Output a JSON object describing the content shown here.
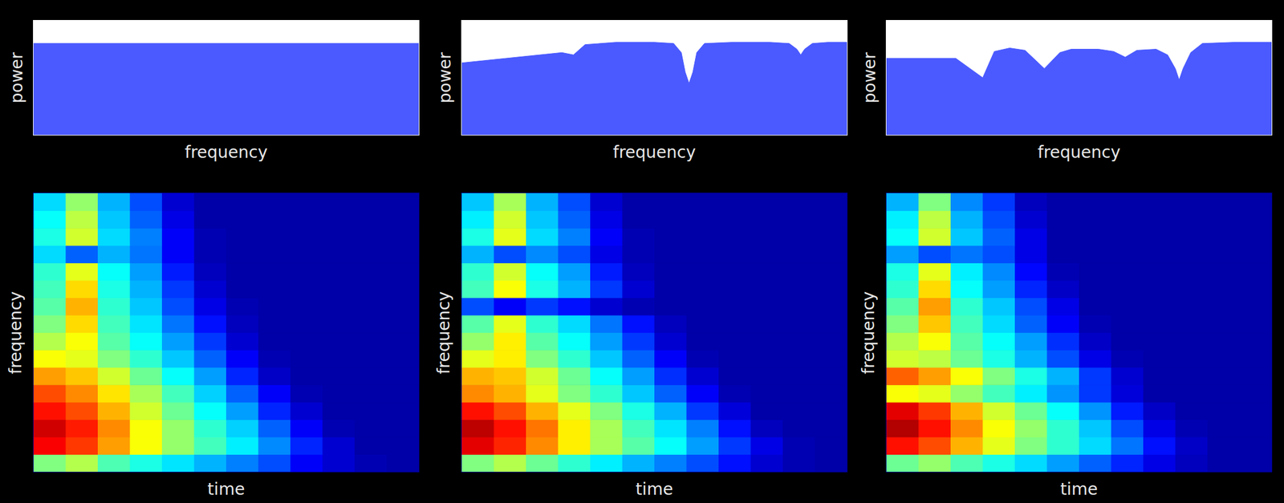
{
  "chart_data": [
    {
      "type": "area",
      "x_label": "frequency",
      "y_label": "power",
      "color": "#4a5aff",
      "tick_labels": false,
      "xlim": [
        0,
        100
      ],
      "ylim": [
        0,
        1
      ],
      "x": [
        0,
        100
      ],
      "values": [
        0.8,
        0.8
      ]
    },
    {
      "type": "area",
      "x_label": "frequency",
      "y_label": "power",
      "color": "#4a5aff",
      "tick_labels": false,
      "xlim": [
        0,
        100
      ],
      "ylim": [
        0,
        1
      ],
      "x": [
        0,
        26,
        29,
        32,
        40,
        50,
        55,
        57,
        58,
        59,
        60,
        61,
        63,
        70,
        80,
        85,
        87,
        88,
        89,
        91,
        95,
        100
      ],
      "values": [
        0.63,
        0.72,
        0.7,
        0.79,
        0.81,
        0.81,
        0.8,
        0.72,
        0.55,
        0.45,
        0.55,
        0.72,
        0.8,
        0.81,
        0.81,
        0.8,
        0.75,
        0.7,
        0.75,
        0.8,
        0.81,
        0.81
      ]
    },
    {
      "type": "area",
      "x_label": "frequency",
      "y_label": "power",
      "color": "#4a5aff",
      "tick_labels": false,
      "xlim": [
        0,
        100
      ],
      "ylim": [
        0,
        1
      ],
      "x": [
        0,
        18,
        25,
        28,
        32,
        36,
        41,
        45,
        48,
        55,
        59,
        62,
        65,
        70,
        73,
        75,
        76,
        77,
        79,
        82,
        90,
        100
      ],
      "values": [
        0.67,
        0.67,
        0.5,
        0.73,
        0.76,
        0.74,
        0.58,
        0.72,
        0.75,
        0.75,
        0.73,
        0.68,
        0.74,
        0.75,
        0.7,
        0.58,
        0.48,
        0.58,
        0.72,
        0.8,
        0.81,
        0.81
      ]
    },
    {
      "type": "heatmap",
      "x_label": "time",
      "y_label": "frequency",
      "tick_labels": false,
      "xlim": [
        0,
        12
      ],
      "ylim": [
        0,
        16
      ],
      "zlim": [
        0,
        1
      ],
      "cells": [
        [
          0.5,
          0.55,
          0.45,
          0.4,
          0.35,
          0.3,
          0.25,
          0.2,
          0.12,
          0.08,
          0.05,
          0.04
        ],
        [
          0.88,
          0.82,
          0.72,
          0.62,
          0.52,
          0.44,
          0.36,
          0.26,
          0.16,
          0.08,
          0.04,
          0.04
        ],
        [
          0.92,
          0.85,
          0.74,
          0.62,
          0.52,
          0.42,
          0.33,
          0.22,
          0.12,
          0.05,
          0.04,
          0.04
        ],
        [
          0.86,
          0.8,
          0.7,
          0.58,
          0.48,
          0.38,
          0.28,
          0.16,
          0.08,
          0.04,
          0.04,
          0.04
        ],
        [
          0.8,
          0.74,
          0.65,
          0.54,
          0.44,
          0.33,
          0.22,
          0.12,
          0.05,
          0.04,
          0.04,
          0.04
        ],
        [
          0.72,
          0.68,
          0.58,
          0.48,
          0.38,
          0.28,
          0.16,
          0.07,
          0.04,
          0.04,
          0.04,
          0.04
        ],
        [
          0.62,
          0.6,
          0.5,
          0.42,
          0.32,
          0.22,
          0.12,
          0.05,
          0.04,
          0.04,
          0.04,
          0.04
        ],
        [
          0.55,
          0.62,
          0.46,
          0.38,
          0.28,
          0.18,
          0.08,
          0.04,
          0.04,
          0.04,
          0.04,
          0.04
        ],
        [
          0.5,
          0.66,
          0.44,
          0.35,
          0.24,
          0.14,
          0.06,
          0.04,
          0.04,
          0.04,
          0.04,
          0.04
        ],
        [
          0.46,
          0.7,
          0.42,
          0.32,
          0.2,
          0.1,
          0.05,
          0.04,
          0.04,
          0.04,
          0.04,
          0.04
        ],
        [
          0.44,
          0.66,
          0.4,
          0.3,
          0.18,
          0.08,
          0.04,
          0.04,
          0.04,
          0.04,
          0.04,
          0.04
        ],
        [
          0.42,
          0.6,
          0.38,
          0.28,
          0.15,
          0.06,
          0.04,
          0.04,
          0.04,
          0.04,
          0.04,
          0.04
        ],
        [
          0.34,
          0.22,
          0.3,
          0.24,
          0.12,
          0.05,
          0.04,
          0.04,
          0.04,
          0.04,
          0.04,
          0.04
        ],
        [
          0.4,
          0.58,
          0.34,
          0.25,
          0.12,
          0.05,
          0.04,
          0.04,
          0.04,
          0.04,
          0.04,
          0.04
        ],
        [
          0.38,
          0.56,
          0.32,
          0.22,
          0.1,
          0.04,
          0.04,
          0.04,
          0.04,
          0.04,
          0.04,
          0.04
        ],
        [
          0.34,
          0.52,
          0.3,
          0.2,
          0.08,
          0.04,
          0.04,
          0.04,
          0.04,
          0.04,
          0.04,
          0.04
        ]
      ]
    },
    {
      "type": "heatmap",
      "x_label": "time",
      "y_label": "frequency",
      "tick_labels": false,
      "xlim": [
        0,
        12
      ],
      "ylim": [
        0,
        16
      ],
      "zlim": [
        0,
        1
      ],
      "cells": [
        [
          0.5,
          0.55,
          0.48,
          0.42,
          0.36,
          0.3,
          0.25,
          0.2,
          0.14,
          0.08,
          0.05,
          0.04
        ],
        [
          0.9,
          0.84,
          0.74,
          0.64,
          0.54,
          0.46,
          0.38,
          0.28,
          0.18,
          0.1,
          0.05,
          0.04
        ],
        [
          0.94,
          0.86,
          0.76,
          0.64,
          0.54,
          0.44,
          0.35,
          0.25,
          0.14,
          0.06,
          0.04,
          0.04
        ],
        [
          0.86,
          0.8,
          0.7,
          0.6,
          0.5,
          0.4,
          0.3,
          0.18,
          0.09,
          0.04,
          0.04,
          0.04
        ],
        [
          0.74,
          0.7,
          0.6,
          0.5,
          0.42,
          0.32,
          0.22,
          0.12,
          0.05,
          0.04,
          0.04,
          0.04
        ],
        [
          0.7,
          0.68,
          0.58,
          0.48,
          0.38,
          0.28,
          0.17,
          0.08,
          0.04,
          0.04,
          0.04,
          0.04
        ],
        [
          0.6,
          0.64,
          0.5,
          0.42,
          0.32,
          0.22,
          0.12,
          0.05,
          0.04,
          0.04,
          0.04,
          0.04
        ],
        [
          0.52,
          0.64,
          0.46,
          0.38,
          0.28,
          0.18,
          0.08,
          0.04,
          0.04,
          0.04,
          0.04,
          0.04
        ],
        [
          0.46,
          0.6,
          0.42,
          0.34,
          0.24,
          0.14,
          0.06,
          0.04,
          0.04,
          0.04,
          0.04,
          0.04
        ],
        [
          0.2,
          0.12,
          0.18,
          0.14,
          0.08,
          0.05,
          0.04,
          0.04,
          0.04,
          0.04,
          0.04,
          0.04
        ],
        [
          0.44,
          0.62,
          0.4,
          0.3,
          0.18,
          0.08,
          0.04,
          0.04,
          0.04,
          0.04,
          0.04,
          0.04
        ],
        [
          0.42,
          0.58,
          0.38,
          0.28,
          0.15,
          0.06,
          0.04,
          0.04,
          0.04,
          0.04,
          0.04,
          0.04
        ],
        [
          0.3,
          0.2,
          0.26,
          0.2,
          0.1,
          0.05,
          0.04,
          0.04,
          0.04,
          0.04,
          0.04,
          0.04
        ],
        [
          0.4,
          0.6,
          0.34,
          0.25,
          0.12,
          0.05,
          0.04,
          0.04,
          0.04,
          0.04,
          0.04,
          0.04
        ],
        [
          0.36,
          0.58,
          0.32,
          0.22,
          0.1,
          0.04,
          0.04,
          0.04,
          0.04,
          0.04,
          0.04,
          0.04
        ],
        [
          0.32,
          0.54,
          0.3,
          0.2,
          0.08,
          0.04,
          0.04,
          0.04,
          0.04,
          0.04,
          0.04,
          0.04
        ]
      ]
    },
    {
      "type": "heatmap",
      "x_label": "time",
      "y_label": "frequency",
      "tick_labels": false,
      "xlim": [
        0,
        12
      ],
      "ylim": [
        0,
        16
      ],
      "zlim": [
        0,
        1
      ],
      "cells": [
        [
          0.48,
          0.52,
          0.45,
          0.4,
          0.34,
          0.28,
          0.22,
          0.16,
          0.1,
          0.06,
          0.04,
          0.04
        ],
        [
          0.86,
          0.8,
          0.7,
          0.6,
          0.5,
          0.42,
          0.34,
          0.24,
          0.14,
          0.07,
          0.04,
          0.04
        ],
        [
          0.95,
          0.86,
          0.74,
          0.62,
          0.52,
          0.42,
          0.32,
          0.2,
          0.1,
          0.05,
          0.04,
          0.04
        ],
        [
          0.9,
          0.82,
          0.7,
          0.58,
          0.48,
          0.38,
          0.27,
          0.15,
          0.07,
          0.04,
          0.04,
          0.04
        ],
        [
          0.62,
          0.6,
          0.52,
          0.44,
          0.36,
          0.27,
          0.18,
          0.09,
          0.04,
          0.04,
          0.04,
          0.04
        ],
        [
          0.78,
          0.72,
          0.62,
          0.5,
          0.4,
          0.3,
          0.18,
          0.08,
          0.04,
          0.04,
          0.04,
          0.04
        ],
        [
          0.58,
          0.56,
          0.48,
          0.4,
          0.3,
          0.2,
          0.1,
          0.05,
          0.04,
          0.04,
          0.04,
          0.04
        ],
        [
          0.55,
          0.62,
          0.46,
          0.38,
          0.28,
          0.17,
          0.07,
          0.04,
          0.04,
          0.04,
          0.04,
          0.04
        ],
        [
          0.5,
          0.68,
          0.44,
          0.34,
          0.22,
          0.12,
          0.05,
          0.04,
          0.04,
          0.04,
          0.04,
          0.04
        ],
        [
          0.46,
          0.72,
          0.42,
          0.32,
          0.2,
          0.1,
          0.04,
          0.04,
          0.04,
          0.04,
          0.04,
          0.04
        ],
        [
          0.42,
          0.66,
          0.38,
          0.28,
          0.16,
          0.07,
          0.04,
          0.04,
          0.04,
          0.04,
          0.04,
          0.04
        ],
        [
          0.4,
          0.6,
          0.36,
          0.26,
          0.13,
          0.05,
          0.04,
          0.04,
          0.04,
          0.04,
          0.04,
          0.04
        ],
        [
          0.28,
          0.2,
          0.24,
          0.2,
          0.1,
          0.04,
          0.04,
          0.04,
          0.04,
          0.04,
          0.04,
          0.04
        ],
        [
          0.38,
          0.58,
          0.32,
          0.22,
          0.1,
          0.04,
          0.04,
          0.04,
          0.04,
          0.04,
          0.04,
          0.04
        ],
        [
          0.36,
          0.56,
          0.3,
          0.2,
          0.08,
          0.04,
          0.04,
          0.04,
          0.04,
          0.04,
          0.04,
          0.04
        ],
        [
          0.3,
          0.5,
          0.26,
          0.18,
          0.06,
          0.04,
          0.04,
          0.04,
          0.04,
          0.04,
          0.04,
          0.04
        ]
      ]
    }
  ]
}
